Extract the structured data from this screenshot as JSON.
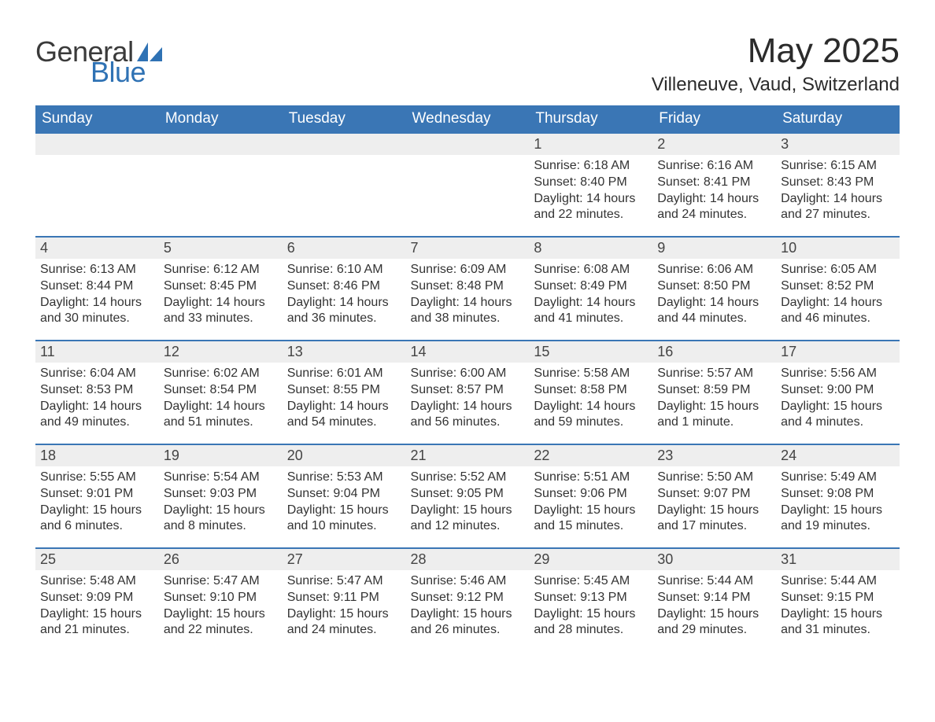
{
  "brand": {
    "word1": "General",
    "word2": "Blue",
    "color_word1": "#3a3a3a",
    "color_word2": "#2f72b4",
    "shape_color": "#2f72b4"
  },
  "title": "May 2025",
  "location": "Villeneuve, Vaud, Switzerland",
  "theme": {
    "header_bg": "#3a76b5",
    "header_fg": "#ffffff",
    "strip_bg": "#eeeeee",
    "border_color": "#3a76b5",
    "text_color": "#333333",
    "page_bg": "#ffffff"
  },
  "weekdays": [
    "Sunday",
    "Monday",
    "Tuesday",
    "Wednesday",
    "Thursday",
    "Friday",
    "Saturday"
  ],
  "weeks": [
    [
      null,
      null,
      null,
      null,
      {
        "day": "1",
        "sunrise": "Sunrise: 6:18 AM",
        "sunset": "Sunset: 8:40 PM",
        "daylight": "Daylight: 14 hours and 22 minutes."
      },
      {
        "day": "2",
        "sunrise": "Sunrise: 6:16 AM",
        "sunset": "Sunset: 8:41 PM",
        "daylight": "Daylight: 14 hours and 24 minutes."
      },
      {
        "day": "3",
        "sunrise": "Sunrise: 6:15 AM",
        "sunset": "Sunset: 8:43 PM",
        "daylight": "Daylight: 14 hours and 27 minutes."
      }
    ],
    [
      {
        "day": "4",
        "sunrise": "Sunrise: 6:13 AM",
        "sunset": "Sunset: 8:44 PM",
        "daylight": "Daylight: 14 hours and 30 minutes."
      },
      {
        "day": "5",
        "sunrise": "Sunrise: 6:12 AM",
        "sunset": "Sunset: 8:45 PM",
        "daylight": "Daylight: 14 hours and 33 minutes."
      },
      {
        "day": "6",
        "sunrise": "Sunrise: 6:10 AM",
        "sunset": "Sunset: 8:46 PM",
        "daylight": "Daylight: 14 hours and 36 minutes."
      },
      {
        "day": "7",
        "sunrise": "Sunrise: 6:09 AM",
        "sunset": "Sunset: 8:48 PM",
        "daylight": "Daylight: 14 hours and 38 minutes."
      },
      {
        "day": "8",
        "sunrise": "Sunrise: 6:08 AM",
        "sunset": "Sunset: 8:49 PM",
        "daylight": "Daylight: 14 hours and 41 minutes."
      },
      {
        "day": "9",
        "sunrise": "Sunrise: 6:06 AM",
        "sunset": "Sunset: 8:50 PM",
        "daylight": "Daylight: 14 hours and 44 minutes."
      },
      {
        "day": "10",
        "sunrise": "Sunrise: 6:05 AM",
        "sunset": "Sunset: 8:52 PM",
        "daylight": "Daylight: 14 hours and 46 minutes."
      }
    ],
    [
      {
        "day": "11",
        "sunrise": "Sunrise: 6:04 AM",
        "sunset": "Sunset: 8:53 PM",
        "daylight": "Daylight: 14 hours and 49 minutes."
      },
      {
        "day": "12",
        "sunrise": "Sunrise: 6:02 AM",
        "sunset": "Sunset: 8:54 PM",
        "daylight": "Daylight: 14 hours and 51 minutes."
      },
      {
        "day": "13",
        "sunrise": "Sunrise: 6:01 AM",
        "sunset": "Sunset: 8:55 PM",
        "daylight": "Daylight: 14 hours and 54 minutes."
      },
      {
        "day": "14",
        "sunrise": "Sunrise: 6:00 AM",
        "sunset": "Sunset: 8:57 PM",
        "daylight": "Daylight: 14 hours and 56 minutes."
      },
      {
        "day": "15",
        "sunrise": "Sunrise: 5:58 AM",
        "sunset": "Sunset: 8:58 PM",
        "daylight": "Daylight: 14 hours and 59 minutes."
      },
      {
        "day": "16",
        "sunrise": "Sunrise: 5:57 AM",
        "sunset": "Sunset: 8:59 PM",
        "daylight": "Daylight: 15 hours and 1 minute."
      },
      {
        "day": "17",
        "sunrise": "Sunrise: 5:56 AM",
        "sunset": "Sunset: 9:00 PM",
        "daylight": "Daylight: 15 hours and 4 minutes."
      }
    ],
    [
      {
        "day": "18",
        "sunrise": "Sunrise: 5:55 AM",
        "sunset": "Sunset: 9:01 PM",
        "daylight": "Daylight: 15 hours and 6 minutes."
      },
      {
        "day": "19",
        "sunrise": "Sunrise: 5:54 AM",
        "sunset": "Sunset: 9:03 PM",
        "daylight": "Daylight: 15 hours and 8 minutes."
      },
      {
        "day": "20",
        "sunrise": "Sunrise: 5:53 AM",
        "sunset": "Sunset: 9:04 PM",
        "daylight": "Daylight: 15 hours and 10 minutes."
      },
      {
        "day": "21",
        "sunrise": "Sunrise: 5:52 AM",
        "sunset": "Sunset: 9:05 PM",
        "daylight": "Daylight: 15 hours and 12 minutes."
      },
      {
        "day": "22",
        "sunrise": "Sunrise: 5:51 AM",
        "sunset": "Sunset: 9:06 PM",
        "daylight": "Daylight: 15 hours and 15 minutes."
      },
      {
        "day": "23",
        "sunrise": "Sunrise: 5:50 AM",
        "sunset": "Sunset: 9:07 PM",
        "daylight": "Daylight: 15 hours and 17 minutes."
      },
      {
        "day": "24",
        "sunrise": "Sunrise: 5:49 AM",
        "sunset": "Sunset: 9:08 PM",
        "daylight": "Daylight: 15 hours and 19 minutes."
      }
    ],
    [
      {
        "day": "25",
        "sunrise": "Sunrise: 5:48 AM",
        "sunset": "Sunset: 9:09 PM",
        "daylight": "Daylight: 15 hours and 21 minutes."
      },
      {
        "day": "26",
        "sunrise": "Sunrise: 5:47 AM",
        "sunset": "Sunset: 9:10 PM",
        "daylight": "Daylight: 15 hours and 22 minutes."
      },
      {
        "day": "27",
        "sunrise": "Sunrise: 5:47 AM",
        "sunset": "Sunset: 9:11 PM",
        "daylight": "Daylight: 15 hours and 24 minutes."
      },
      {
        "day": "28",
        "sunrise": "Sunrise: 5:46 AM",
        "sunset": "Sunset: 9:12 PM",
        "daylight": "Daylight: 15 hours and 26 minutes."
      },
      {
        "day": "29",
        "sunrise": "Sunrise: 5:45 AM",
        "sunset": "Sunset: 9:13 PM",
        "daylight": "Daylight: 15 hours and 28 minutes."
      },
      {
        "day": "30",
        "sunrise": "Sunrise: 5:44 AM",
        "sunset": "Sunset: 9:14 PM",
        "daylight": "Daylight: 15 hours and 29 minutes."
      },
      {
        "day": "31",
        "sunrise": "Sunrise: 5:44 AM",
        "sunset": "Sunset: 9:15 PM",
        "daylight": "Daylight: 15 hours and 31 minutes."
      }
    ]
  ]
}
